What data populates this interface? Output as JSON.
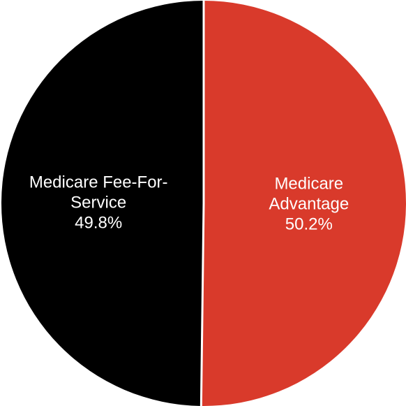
{
  "chart_data": {
    "type": "pie",
    "categories": [
      "Medicare Advantage",
      "Medicare Fee-For-Service"
    ],
    "values": [
      50.2,
      49.8
    ],
    "value_labels": [
      "50.2%",
      "49.8%"
    ],
    "colors": [
      "#d93a2b",
      "#000000"
    ]
  }
}
